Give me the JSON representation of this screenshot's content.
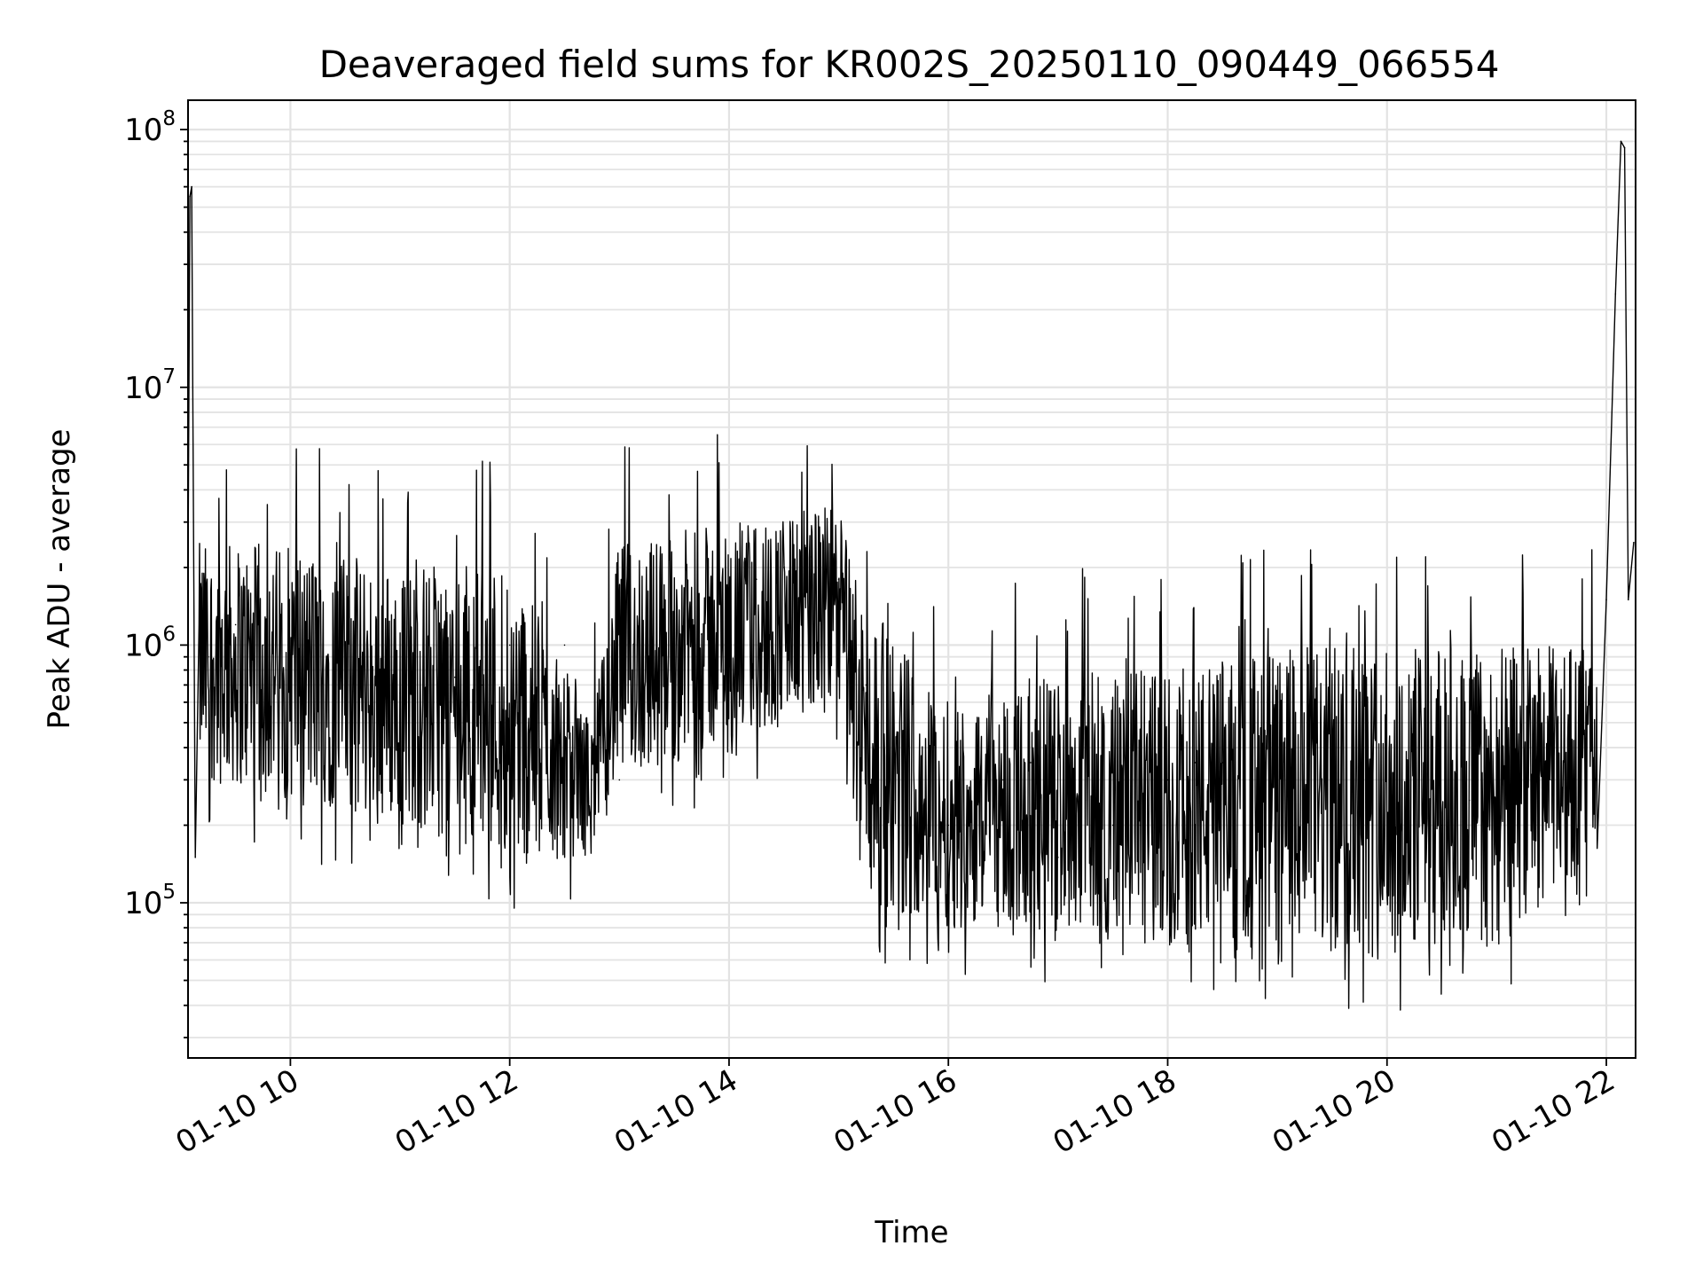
{
  "chart_data": {
    "type": "line",
    "title": "Deaveraged field sums for KR002S_20250110_090449_066554",
    "xlabel": "Time",
    "ylabel": "Peak ADU - average",
    "yscale": "log",
    "ylim": [
      25000,
      130000000
    ],
    "xlim": [
      "2025-01-10 09:04",
      "2025-01-10 22:16"
    ],
    "grid": true,
    "x_ticks": [
      {
        "value": "2025-01-10 10:00",
        "label": "01-10 10"
      },
      {
        "value": "2025-01-10 12:00",
        "label": "01-10 12"
      },
      {
        "value": "2025-01-10 14:00",
        "label": "01-10 14"
      },
      {
        "value": "2025-01-10 16:00",
        "label": "01-10 16"
      },
      {
        "value": "2025-01-10 18:00",
        "label": "01-10 18"
      },
      {
        "value": "2025-01-10 20:00",
        "label": "01-10 20"
      },
      {
        "value": "2025-01-10 22:00",
        "label": "01-10 22"
      }
    ],
    "y_ticks": [
      {
        "value": 100000,
        "base": "10",
        "exp": "5"
      },
      {
        "value": 1000000,
        "base": "10",
        "exp": "6"
      },
      {
        "value": 10000000,
        "base": "10",
        "exp": "7"
      },
      {
        "value": 100000000,
        "base": "10",
        "exp": "8"
      }
    ],
    "series": [
      {
        "color": "#000000",
        "x": [
          "2025-01-10 09:04",
          "2025-01-10 09:05",
          "2025-01-10 09:06",
          "2025-01-10 09:08",
          "2025-01-10 09:15",
          "2025-01-10 09:30",
          "2025-01-10 09:45",
          "2025-01-10 10:00",
          "2025-01-10 10:15",
          "2025-01-10 10:30",
          "2025-01-10 10:45",
          "2025-01-10 11:00",
          "2025-01-10 11:15",
          "2025-01-10 11:30",
          "2025-01-10 11:45",
          "2025-01-10 12:00",
          "2025-01-10 12:15",
          "2025-01-10 12:30",
          "2025-01-10 12:45",
          "2025-01-10 13:00",
          "2025-01-10 13:15",
          "2025-01-10 13:30",
          "2025-01-10 13:45",
          "2025-01-10 14:00",
          "2025-01-10 14:15",
          "2025-01-10 14:30",
          "2025-01-10 14:45",
          "2025-01-10 15:00",
          "2025-01-10 15:15",
          "2025-01-10 15:30",
          "2025-01-10 15:45",
          "2025-01-10 16:00",
          "2025-01-10 16:15",
          "2025-01-10 16:30",
          "2025-01-10 16:45",
          "2025-01-10 17:00",
          "2025-01-10 17:15",
          "2025-01-10 17:30",
          "2025-01-10 17:45",
          "2025-01-10 18:00",
          "2025-01-10 18:15",
          "2025-01-10 18:30",
          "2025-01-10 18:45",
          "2025-01-10 19:00",
          "2025-01-10 19:15",
          "2025-01-10 19:30",
          "2025-01-10 19:45",
          "2025-01-10 20:00",
          "2025-01-10 20:15",
          "2025-01-10 20:30",
          "2025-01-10 20:45",
          "2025-01-10 21:00",
          "2025-01-10 21:15",
          "2025-01-10 21:30",
          "2025-01-10 21:45",
          "2025-01-10 22:00",
          "2025-01-10 22:05",
          "2025-01-10 22:08",
          "2025-01-10 22:10",
          "2025-01-10 22:12",
          "2025-01-10 22:15"
        ],
        "y": [
          2000000,
          55000000,
          60000000,
          150000,
          900000,
          1200000,
          1000000,
          800000,
          600000,
          700000,
          800000,
          650000,
          700000,
          750000,
          700000,
          1000000,
          600000,
          1000000,
          300000,
          300000,
          1000000,
          900000,
          1100000,
          1400000,
          1800000,
          2000000,
          2200000,
          1800000,
          700000,
          250000,
          300000,
          200000,
          200000,
          300000,
          350000,
          150000,
          250000,
          200000,
          200000,
          300000,
          350000,
          350000,
          300000,
          250000,
          250000,
          300000,
          300000,
          200000,
          250000,
          200000,
          250000,
          200000,
          250000,
          300000,
          400000,
          1500000,
          23000000,
          90000000,
          85000000,
          1500000,
          2500000
        ],
        "envelope": {
          "x": [
            "2025-01-10 09:10",
            "2025-01-10 10:00",
            "2025-01-10 11:00",
            "2025-01-10 12:00",
            "2025-01-10 12:45",
            "2025-01-10 13:00",
            "2025-01-10 14:00",
            "2025-01-10 15:00",
            "2025-01-10 15:15",
            "2025-01-10 16:00",
            "2025-01-10 17:00",
            "2025-01-10 18:00",
            "2025-01-10 19:00",
            "2025-01-10 20:00",
            "2025-01-10 21:00",
            "2025-01-10 21:55"
          ],
          "upper": [
            2500000,
            2500000,
            2000000,
            2200000,
            500000,
            2500000,
            3000000,
            3500000,
            1500000,
            600000,
            800000,
            800000,
            1000000,
            1000000,
            1000000,
            1000000
          ],
          "lower": [
            300000,
            250000,
            200000,
            150000,
            150000,
            300000,
            400000,
            600000,
            100000,
            80000,
            80000,
            70000,
            60000,
            60000,
            70000,
            150000
          ]
        }
      }
    ]
  }
}
